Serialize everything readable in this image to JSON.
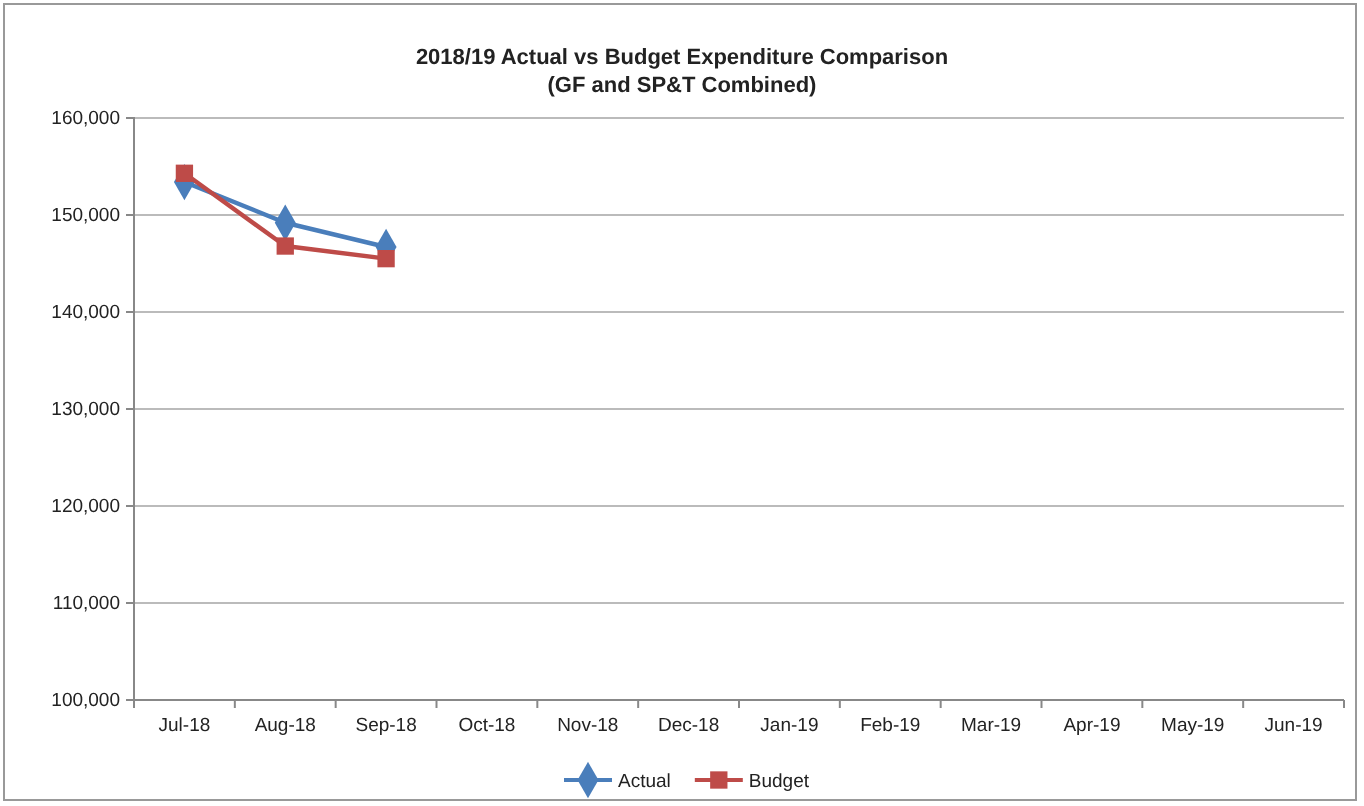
{
  "chart_data": {
    "type": "line",
    "title": "2018/19 Actual vs Budget Expenditure Comparison",
    "subtitle": "(GF and SP&T Combined)",
    "categories": [
      "Jul-18",
      "Aug-18",
      "Sep-18",
      "Oct-18",
      "Nov-18",
      "Dec-18",
      "Jan-19",
      "Feb-19",
      "Mar-19",
      "Apr-19",
      "May-19",
      "Jun-19"
    ],
    "series": [
      {
        "name": "Actual",
        "color": "#4a7ebb",
        "marker": "diamond",
        "values": [
          153400,
          149200,
          146700,
          null,
          null,
          null,
          null,
          null,
          null,
          null,
          null,
          null
        ]
      },
      {
        "name": "Budget",
        "color": "#be4b48",
        "marker": "square",
        "values": [
          154300,
          146800,
          145500,
          null,
          null,
          null,
          null,
          null,
          null,
          null,
          null,
          null
        ]
      }
    ],
    "ylim": [
      100000,
      160000
    ],
    "yticks": [
      {
        "value": 100000,
        "label": "100,000"
      },
      {
        "value": 110000,
        "label": "110,000"
      },
      {
        "value": 120000,
        "label": "120,000"
      },
      {
        "value": 130000,
        "label": "130,000"
      },
      {
        "value": 140000,
        "label": "140,000"
      },
      {
        "value": 150000,
        "label": "150,000"
      },
      {
        "value": 160000,
        "label": "160,000"
      }
    ],
    "grid": "y",
    "legend": "bottom"
  }
}
